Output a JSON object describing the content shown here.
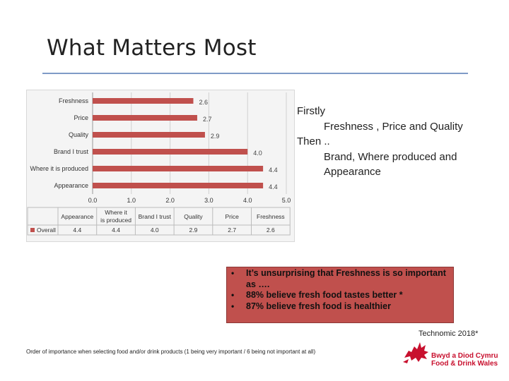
{
  "slide": {
    "title": "What Matters Most",
    "side_text": {
      "l1": "Firstly",
      "l2": "Freshness , Price and Quality",
      "l3": "Then ..",
      "l4": "Brand, Where produced and",
      "l5": "Appearance"
    },
    "callout": {
      "b1": "It’s unsurprising that Freshness is so important",
      "b1_cont": "as ….",
      "b2": "88% believe fresh food tastes better *",
      "b3": "87% believe fresh food is healthier",
      "bullet": "•"
    },
    "source": "Technomic 2018*",
    "footnote": "Order of importance when selecting food and/or drink products (1 being very important / 6 being not important at all)",
    "logo": {
      "line1": "Bwyd a Diod Cymru",
      "line2": "Food & Drink Wales"
    }
  },
  "colors": {
    "bar": "#c0504d",
    "accent_rule": "#7f9bc7",
    "logo_red": "#c8102e"
  },
  "chart_data": {
    "type": "bar",
    "orientation": "horizontal",
    "categories": [
      "Freshness",
      "Price",
      "Quality",
      "Brand I trust",
      "Where it is produced",
      "Appearance"
    ],
    "series": [
      {
        "name": "Overall",
        "values": [
          2.6,
          2.7,
          2.9,
          4.0,
          4.4,
          4.4
        ],
        "labels": [
          "2.6",
          "2.7",
          "2.9",
          "4.0",
          "4.4",
          "4.4"
        ]
      }
    ],
    "xlim": [
      0,
      5
    ],
    "xticks": [
      "0.0",
      "1.0",
      "2.0",
      "3.0",
      "4.0",
      "5.0"
    ],
    "grid": true,
    "data_table": {
      "headers": [
        "Appearance",
        "Where it is produced",
        "Brand I trust",
        "Quality",
        "Price",
        "Freshness"
      ],
      "row_label": "Overall",
      "values": [
        "4.4",
        "4.4",
        "4.0",
        "2.9",
        "2.7",
        "2.6"
      ]
    }
  }
}
